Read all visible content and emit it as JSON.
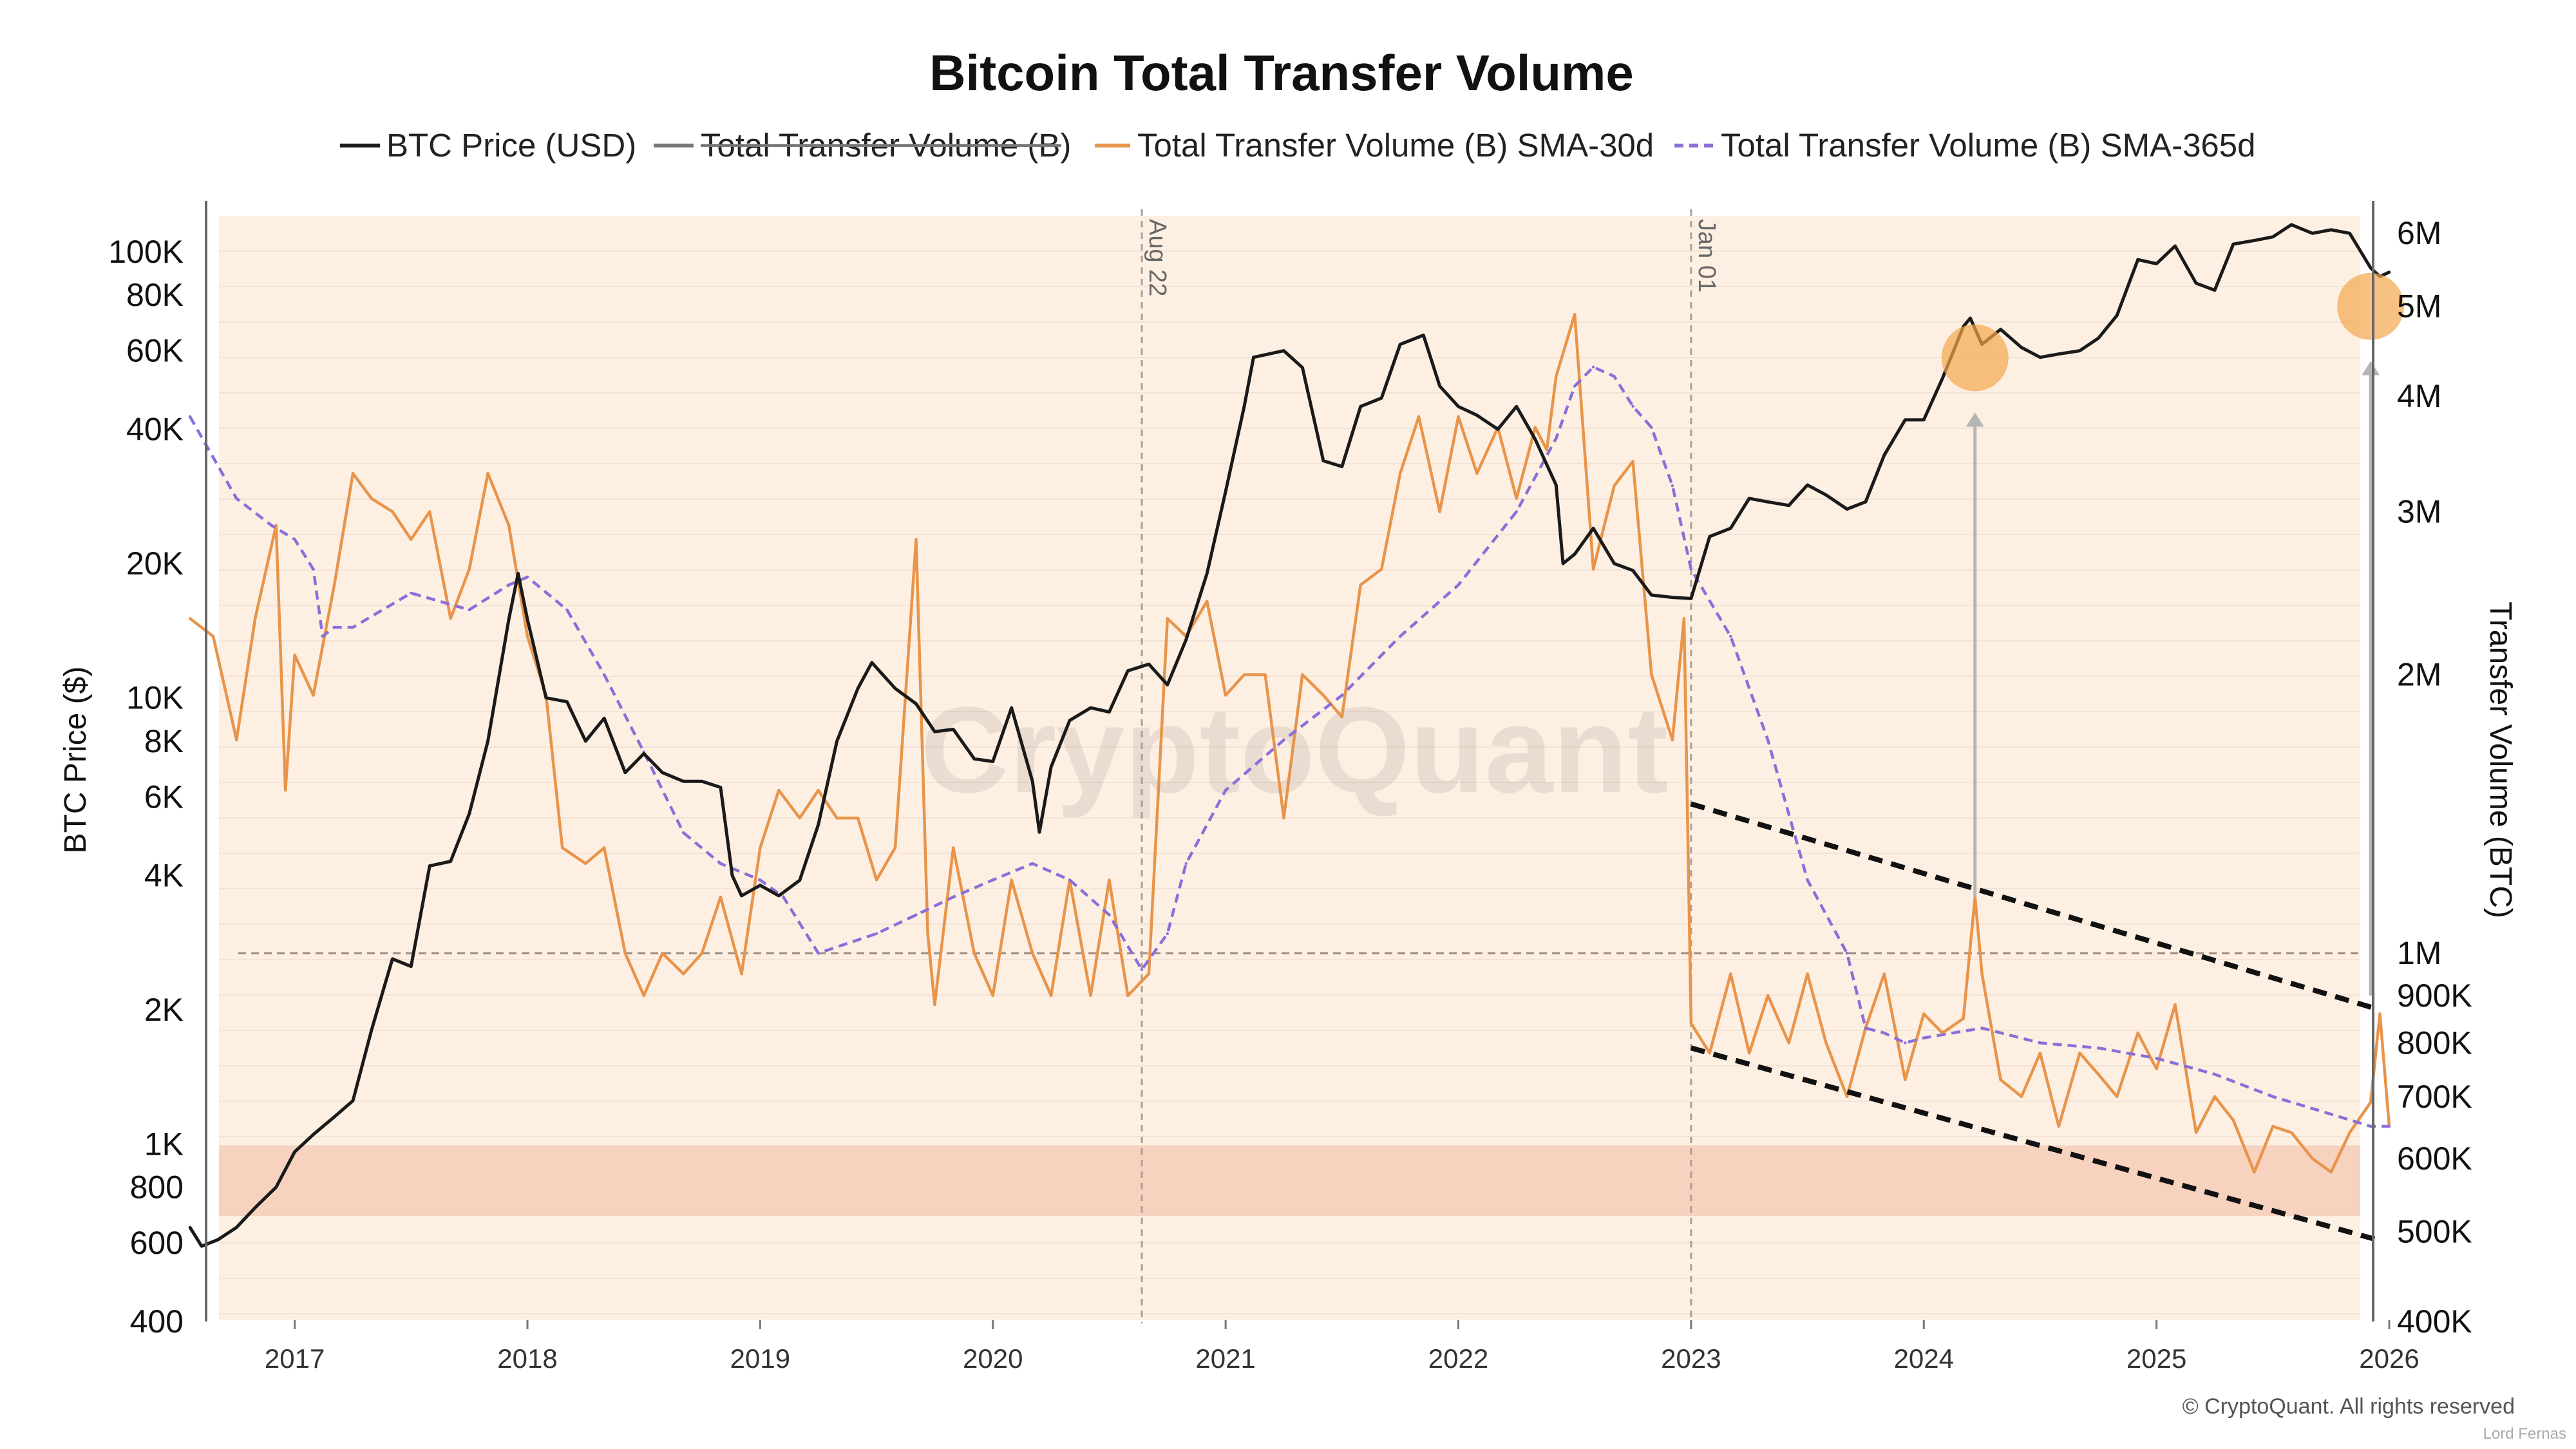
{
  "chart_data": {
    "type": "line",
    "title": "Bitcoin Total Transfer Volume",
    "legend": [
      {
        "label": "BTC Price (USD)",
        "color": "#1a1a1a",
        "style": "solid",
        "struck": false
      },
      {
        "label": "Total Transfer Volume (B)",
        "color": "#777777",
        "style": "solid",
        "struck": true
      },
      {
        "label": "Total Transfer Volume (B) SMA-30d",
        "color": "#e8944a",
        "style": "solid",
        "struck": false
      },
      {
        "label": "Total Transfer Volume (B) SMA-365d",
        "color": "#8a6fd8",
        "style": "dashed",
        "struck": false
      }
    ],
    "x_range": [
      2016.55,
      2026.0
    ],
    "x_ticks": [
      {
        "value": 2017,
        "label": "2017"
      },
      {
        "value": 2018,
        "label": "2018"
      },
      {
        "value": 2019,
        "label": "2019"
      },
      {
        "value": 2020,
        "label": "2020"
      },
      {
        "value": 2021,
        "label": "2021"
      },
      {
        "value": 2022,
        "label": "2022"
      },
      {
        "value": 2023,
        "label": "2023"
      },
      {
        "value": 2024,
        "label": "2024"
      },
      {
        "value": 2025,
        "label": "2025"
      },
      {
        "value": 2026,
        "label": "2026"
      }
    ],
    "y_left": {
      "label": "BTC Price ($)",
      "scale": "log",
      "range": [
        400,
        130000
      ],
      "ticks": [
        {
          "value": 400,
          "label": "400"
        },
        {
          "value": 600,
          "label": "600"
        },
        {
          "value": 800,
          "label": "800"
        },
        {
          "value": 1000,
          "label": "1K"
        },
        {
          "value": 2000,
          "label": "2K"
        },
        {
          "value": 4000,
          "label": "4K"
        },
        {
          "value": 6000,
          "label": "6K"
        },
        {
          "value": 8000,
          "label": "8K"
        },
        {
          "value": 10000,
          "label": "10K"
        },
        {
          "value": 20000,
          "label": "20K"
        },
        {
          "value": 40000,
          "label": "40K"
        },
        {
          "value": 60000,
          "label": "60K"
        },
        {
          "value": 80000,
          "label": "80K"
        },
        {
          "value": 100000,
          "label": "100K"
        }
      ]
    },
    "y_right": {
      "label": "Transfer Volume  (BTC)",
      "scale": "log",
      "range": [
        400000,
        6500000
      ],
      "ticks": [
        {
          "value": 400000,
          "label": "400K"
        },
        {
          "value": 500000,
          "label": "500K"
        },
        {
          "value": 600000,
          "label": "600K"
        },
        {
          "value": 700000,
          "label": "700K"
        },
        {
          "value": 800000,
          "label": "800K"
        },
        {
          "value": 900000,
          "label": "900K"
        },
        {
          "value": 1000000,
          "label": "1M"
        },
        {
          "value": 2000000,
          "label": "2M"
        },
        {
          "value": 3000000,
          "label": "3M"
        },
        {
          "value": 4000000,
          "label": "4M"
        },
        {
          "value": 5000000,
          "label": "5M"
        },
        {
          "value": 6000000,
          "label": "6M"
        }
      ]
    },
    "bands": [
      {
        "name": "low-volume-zone",
        "axis": "right",
        "from": 520000,
        "to": 620000,
        "color": "#f7d2bf"
      }
    ],
    "reference_lines": [
      {
        "name": "one-million-line",
        "axis": "right",
        "value": 1000000,
        "label": ""
      }
    ],
    "events": [
      {
        "x": 2020.64,
        "label": "Aug 22"
      },
      {
        "x": 2023.0,
        "label": "Jan 01"
      }
    ],
    "series": [
      {
        "name": "BTC Price (USD)",
        "axis": "left",
        "color": "#1a1a1a",
        "dash": "",
        "x": [
          2016.55,
          2016.6,
          2016.67,
          2016.75,
          2016.83,
          2016.92,
          2017.0,
          2017.08,
          2017.17,
          2017.25,
          2017.33,
          2017.42,
          2017.5,
          2017.58,
          2017.67,
          2017.75,
          2017.83,
          2017.92,
          2017.96,
          2018.0,
          2018.08,
          2018.17,
          2018.25,
          2018.33,
          2018.42,
          2018.5,
          2018.58,
          2018.67,
          2018.75,
          2018.83,
          2018.88,
          2018.92,
          2019.0,
          2019.08,
          2019.17,
          2019.25,
          2019.33,
          2019.42,
          2019.48,
          2019.58,
          2019.67,
          2019.75,
          2019.83,
          2019.92,
          2020.0,
          2020.08,
          2020.17,
          2020.2,
          2020.25,
          2020.33,
          2020.42,
          2020.5,
          2020.58,
          2020.67,
          2020.75,
          2020.83,
          2020.92,
          2021.0,
          2021.08,
          2021.12,
          2021.25,
          2021.33,
          2021.42,
          2021.5,
          2021.58,
          2021.67,
          2021.75,
          2021.85,
          2021.92,
          2022.0,
          2022.08,
          2022.17,
          2022.25,
          2022.33,
          2022.42,
          2022.45,
          2022.5,
          2022.58,
          2022.67,
          2022.75,
          2022.83,
          2022.92,
          2023.0,
          2023.08,
          2023.17,
          2023.25,
          2023.33,
          2023.42,
          2023.5,
          2023.58,
          2023.67,
          2023.75,
          2023.83,
          2023.92,
          2024.0,
          2024.08,
          2024.17,
          2024.2,
          2024.25,
          2024.33,
          2024.42,
          2024.5,
          2024.58,
          2024.67,
          2024.75,
          2024.83,
          2024.92,
          2025.0,
          2025.08,
          2025.17,
          2025.25,
          2025.33,
          2025.42,
          2025.5,
          2025.58,
          2025.67,
          2025.75,
          2025.83,
          2025.92,
          2025.96,
          2026.0
        ],
        "values": [
          650,
          590,
          610,
          650,
          720,
          800,
          960,
          1050,
          1150,
          1250,
          1800,
          2600,
          2500,
          4200,
          4300,
          5500,
          8000,
          15000,
          19000,
          15000,
          10000,
          9800,
          8000,
          9000,
          6800,
          7500,
          6800,
          6500,
          6500,
          6300,
          4000,
          3600,
          3800,
          3600,
          3900,
          5200,
          8000,
          10500,
          12000,
          10500,
          9700,
          8400,
          8500,
          7300,
          7200,
          9500,
          6500,
          5000,
          7000,
          8900,
          9500,
          9300,
          11500,
          11900,
          10700,
          13500,
          19000,
          29000,
          45000,
          58000,
          60000,
          55000,
          34000,
          33000,
          45000,
          47000,
          62000,
          65000,
          50000,
          45000,
          43000,
          40000,
          45000,
          38000,
          30000,
          20000,
          21000,
          24000,
          20000,
          19300,
          17000,
          16800,
          16700,
          23000,
          24000,
          28000,
          27500,
          27000,
          30000,
          28500,
          26500,
          27500,
          35000,
          42000,
          42000,
          52000,
          68000,
          71000,
          62000,
          67000,
          61000,
          58000,
          59000,
          60000,
          64000,
          72000,
          96000,
          94000,
          103000,
          85000,
          82000,
          104000,
          106000,
          108000,
          115000,
          110000,
          112000,
          110000,
          92000,
          88000,
          90000
        ]
      },
      {
        "name": "Total Transfer Volume (B) SMA-30d",
        "axis": "right",
        "color": "#e8944a",
        "dash": "",
        "x": [
          2016.55,
          2016.65,
          2016.75,
          2016.83,
          2016.92,
          2016.96,
          2017.0,
          2017.08,
          2017.17,
          2017.25,
          2017.33,
          2017.42,
          2017.5,
          2017.58,
          2017.67,
          2017.75,
          2017.83,
          2017.92,
          2018.0,
          2018.08,
          2018.15,
          2018.25,
          2018.33,
          2018.42,
          2018.5,
          2018.58,
          2018.67,
          2018.75,
          2018.83,
          2018.92,
          2019.0,
          2019.08,
          2019.17,
          2019.25,
          2019.33,
          2019.42,
          2019.5,
          2019.58,
          2019.67,
          2019.72,
          2019.75,
          2019.83,
          2019.92,
          2020.0,
          2020.08,
          2020.17,
          2020.25,
          2020.33,
          2020.42,
          2020.5,
          2020.58,
          2020.67,
          2020.75,
          2020.83,
          2020.92,
          2021.0,
          2021.08,
          2021.17,
          2021.25,
          2021.33,
          2021.42,
          2021.5,
          2021.58,
          2021.67,
          2021.75,
          2021.83,
          2021.92,
          2022.0,
          2022.08,
          2022.17,
          2022.25,
          2022.33,
          2022.38,
          2022.42,
          2022.5,
          2022.58,
          2022.67,
          2022.75,
          2022.83,
          2022.92,
          2022.97,
          2023.0,
          2023.08,
          2023.17,
          2023.25,
          2023.33,
          2023.42,
          2023.5,
          2023.58,
          2023.67,
          2023.75,
          2023.83,
          2023.92,
          2024.0,
          2024.08,
          2024.17,
          2024.22,
          2024.25,
          2024.33,
          2024.42,
          2024.5,
          2024.58,
          2024.67,
          2024.75,
          2024.83,
          2024.92,
          2025.0,
          2025.08,
          2025.17,
          2025.25,
          2025.33,
          2025.42,
          2025.5,
          2025.58,
          2025.67,
          2025.75,
          2025.83,
          2025.92,
          2025.96,
          2026.0
        ],
        "values": [
          2300,
          2200,
          1700,
          2300,
          2900,
          1500,
          2100,
          1900,
          2500,
          3300,
          3100,
          3000,
          2800,
          3000,
          2300,
          2600,
          3300,
          2900,
          2200,
          1900,
          1300,
          1250,
          1300,
          1000,
          900,
          1000,
          950,
          1000,
          1150,
          950,
          1300,
          1500,
          1400,
          1500,
          1400,
          1400,
          1200,
          1300,
          2800,
          1050,
          880,
          1300,
          1000,
          900,
          1200,
          1000,
          900,
          1200,
          900,
          1200,
          900,
          950,
          2300,
          2200,
          2400,
          1900,
          2000,
          2000,
          1400,
          2000,
          1900,
          1800,
          2500,
          2600,
          3300,
          3800,
          3000,
          3800,
          3300,
          3700,
          3100,
          3700,
          3500,
          4200,
          4900,
          2600,
          3200,
          3400,
          2000,
          1700,
          2300,
          840,
          780,
          950,
          780,
          900,
          800,
          950,
          800,
          700,
          830,
          950,
          730,
          860,
          820,
          850,
          1150,
          950,
          730,
          700,
          780,
          650,
          780,
          740,
          700,
          820,
          750,
          880,
          640,
          700,
          660,
          580,
          650,
          640,
          600,
          580,
          640,
          690,
          860,
          650
        ]
      },
      {
        "name": "Total Transfer Volume (B) SMA-365d",
        "axis": "right",
        "color": "#8a6fd8",
        "dash": "14,9",
        "x": [
          2016.55,
          2016.75,
          2016.9,
          2017.0,
          2017.08,
          2017.12,
          2017.17,
          2017.25,
          2017.5,
          2017.75,
          2017.92,
          2018.0,
          2018.17,
          2018.33,
          2018.5,
          2018.67,
          2018.83,
          2019.0,
          2019.1,
          2019.25,
          2019.5,
          2019.67,
          2019.83,
          2020.0,
          2020.17,
          2020.33,
          2020.5,
          2020.64,
          2020.75,
          2020.83,
          2021.0,
          2021.25,
          2021.5,
          2021.75,
          2022.0,
          2022.25,
          2022.42,
          2022.5,
          2022.58,
          2022.67,
          2022.75,
          2022.83,
          2022.92,
          2023.0,
          2023.17,
          2023.33,
          2023.5,
          2023.67,
          2023.75,
          2023.83,
          2023.92,
          2024.0,
          2024.25,
          2024.5,
          2024.75,
          2025.0,
          2025.25,
          2025.5,
          2025.75,
          2025.92,
          2026.0
        ],
        "values": [
          3800,
          3100,
          2900,
          2800,
          2600,
          2200,
          2250,
          2250,
          2450,
          2350,
          2500,
          2550,
          2350,
          2000,
          1650,
          1350,
          1250,
          1200,
          1150,
          1000,
          1050,
          1100,
          1150,
          1200,
          1250,
          1200,
          1100,
          960,
          1050,
          1250,
          1500,
          1700,
          1900,
          2200,
          2500,
          3000,
          3600,
          4100,
          4300,
          4200,
          3900,
          3700,
          3200,
          2600,
          2200,
          1700,
          1200,
          1000,
          830,
          820,
          800,
          810,
          830,
          800,
          790,
          770,
          740,
          700,
          670,
          650,
          650
        ]
      }
    ],
    "trend_channel": {
      "style": "dashed",
      "color": "#111111",
      "upper": {
        "start": [
          2023.0,
          1450000
        ],
        "end": [
          2025.95,
          870000
        ]
      },
      "lower": {
        "start": [
          2023.0,
          790000
        ],
        "end": [
          2025.95,
          490000
        ]
      }
    },
    "highlights": [
      {
        "x": 2024.22,
        "y": 4400000,
        "axis": "right",
        "arrow_from_y": 1150000
      },
      {
        "x": 2025.92,
        "y": 5000000,
        "axis": "right",
        "arrow_from_y": 900000
      }
    ],
    "watermark": "CryptoQuant",
    "footer": "© CryptoQuant. All rights reserved",
    "footer_author": "Lord Fernas"
  },
  "colors": {
    "plot_background": "#fdf0e3",
    "band": "#f7d2bf",
    "grid": "#f3e3d6",
    "axis": "#666666",
    "arrow": "#b5b5b5",
    "highlight": "#f3a64d"
  }
}
